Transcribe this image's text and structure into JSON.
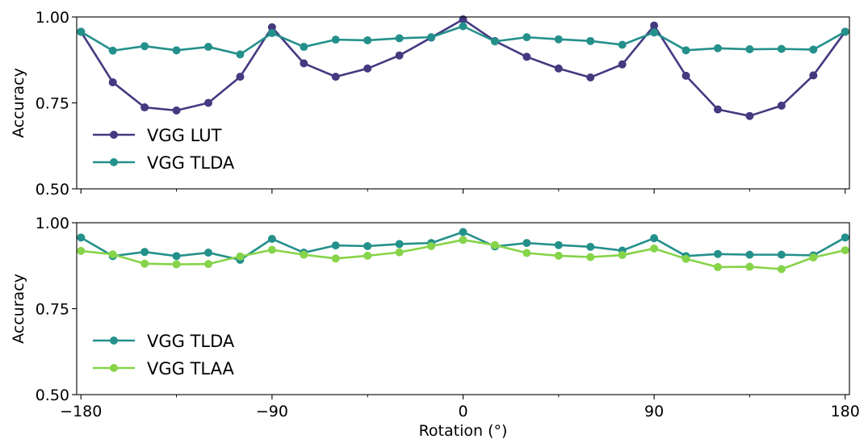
{
  "chart_data": [
    {
      "type": "line",
      "title": "",
      "xlabel": "",
      "ylabel": "Accuracy",
      "xlim": [
        -182,
        182
      ],
      "ylim": [
        0.5,
        1.0
      ],
      "xticks": [
        -180,
        -90,
        0,
        90,
        180
      ],
      "xtick_labels": [
        "",
        "",
        "",
        "",
        ""
      ],
      "yticks": [
        0.5,
        0.75,
        1.0
      ],
      "ytick_labels": [
        "0.50",
        "0.75",
        "1.00"
      ],
      "x": [
        -180,
        -165,
        -150,
        -135,
        -120,
        -105,
        -90,
        -75,
        -60,
        -45,
        -30,
        -15,
        0,
        15,
        30,
        45,
        60,
        75,
        90,
        105,
        120,
        135,
        150,
        165,
        180
      ],
      "series": [
        {
          "name": "VGG LUT",
          "color": "#433a80",
          "values": [
            0.957,
            0.81,
            0.737,
            0.728,
            0.75,
            0.826,
            0.97,
            0.865,
            0.826,
            0.85,
            0.888,
            0.94,
            0.993,
            0.93,
            0.884,
            0.85,
            0.824,
            0.862,
            0.975,
            0.829,
            0.731,
            0.712,
            0.742,
            0.83,
            0.957
          ]
        },
        {
          "name": "VGG TLDA",
          "color": "#24908b",
          "values": [
            0.957,
            0.902,
            0.915,
            0.903,
            0.913,
            0.891,
            0.953,
            0.913,
            0.934,
            0.932,
            0.938,
            0.941,
            0.973,
            0.929,
            0.941,
            0.935,
            0.93,
            0.919,
            0.955,
            0.903,
            0.909,
            0.906,
            0.907,
            0.905,
            0.957
          ]
        }
      ],
      "legend": "lower-left"
    },
    {
      "type": "line",
      "title": "",
      "xlabel": "Rotation (°)",
      "ylabel": "Accuracy",
      "xlim": [
        -182,
        182
      ],
      "ylim": [
        0.5,
        1.0
      ],
      "xticks": [
        -180,
        -90,
        0,
        90,
        180
      ],
      "xtick_labels": [
        "−180",
        "−90",
        "0",
        "90",
        "180"
      ],
      "yticks": [
        0.5,
        0.75,
        1.0
      ],
      "ytick_labels": [
        "0.50",
        "0.75",
        "1.00"
      ],
      "x": [
        -180,
        -165,
        -150,
        -135,
        -120,
        -105,
        -90,
        -75,
        -60,
        -45,
        -30,
        -15,
        0,
        15,
        30,
        45,
        60,
        75,
        90,
        105,
        120,
        135,
        150,
        165,
        180
      ],
      "series": [
        {
          "name": "VGG TLDA",
          "color": "#24908b",
          "values": [
            0.957,
            0.903,
            0.915,
            0.903,
            0.913,
            0.892,
            0.953,
            0.913,
            0.934,
            0.932,
            0.938,
            0.941,
            0.973,
            0.931,
            0.941,
            0.935,
            0.93,
            0.919,
            0.955,
            0.903,
            0.909,
            0.907,
            0.907,
            0.905,
            0.957
          ]
        },
        {
          "name": "VGG TLAA",
          "color": "#86d449",
          "values": [
            0.918,
            0.908,
            0.881,
            0.879,
            0.88,
            0.902,
            0.921,
            0.907,
            0.896,
            0.904,
            0.914,
            0.932,
            0.95,
            0.935,
            0.912,
            0.904,
            0.9,
            0.906,
            0.925,
            0.895,
            0.871,
            0.872,
            0.865,
            0.899,
            0.92
          ]
        }
      ],
      "legend": "lower-left"
    }
  ]
}
